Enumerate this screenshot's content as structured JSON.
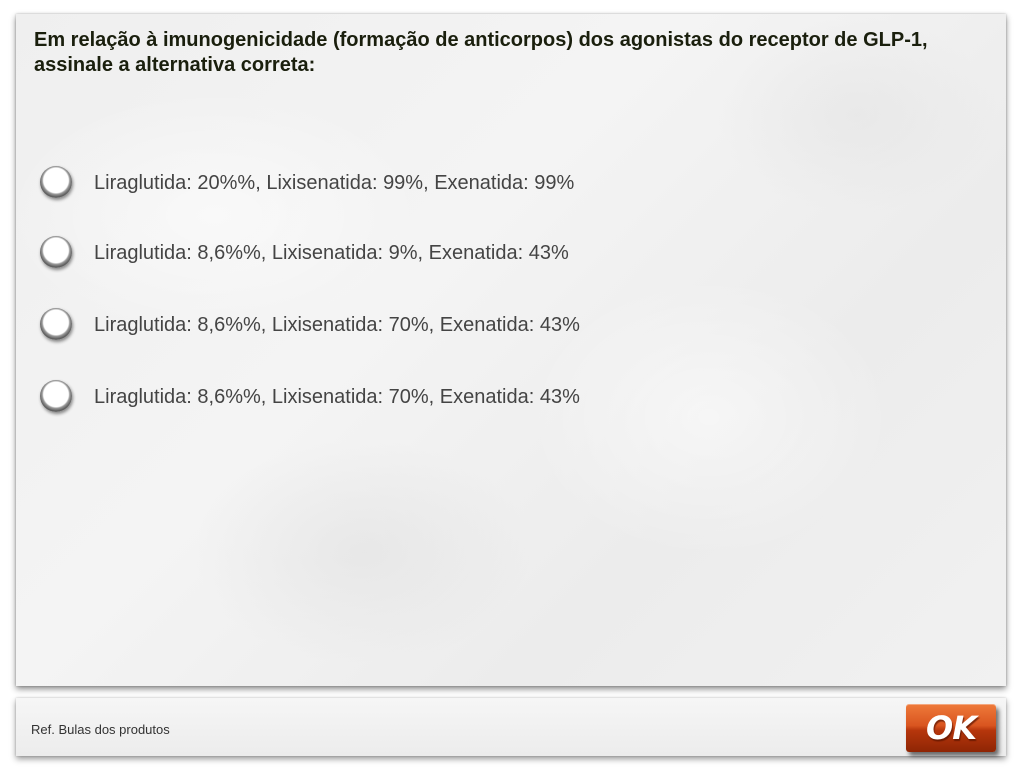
{
  "question": {
    "text": "Em relação à imunogenicidade (formação de anticorpos) dos agonistas do receptor de GLP-1, assinale a alternativa correta:"
  },
  "options": [
    {
      "label": "Liraglutida: 20%%, Lixisenatida: 99%, Exenatida: 99%"
    },
    {
      "label": "Liraglutida: 8,6%%, Lixisenatida: 9%, Exenatida: 43%"
    },
    {
      "label": "Liraglutida: 8,6%%, Lixisenatida: 70%, Exenatida: 43%"
    },
    {
      "label": "Liraglutida: 8,6%%, Lixisenatida: 70%, Exenatida: 43%"
    }
  ],
  "footer": {
    "reference": "Ref. Bulas dos produtos",
    "ok_label": "OK"
  },
  "colors": {
    "question_text": "#1a1f0d",
    "option_text": "#444444",
    "ok_button": "#d95520"
  }
}
